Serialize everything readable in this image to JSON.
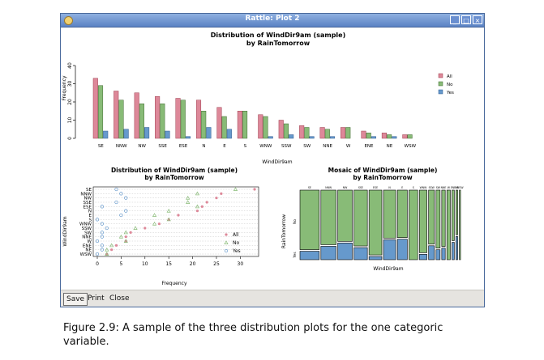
{
  "window": {
    "title": "Rattle: Plot 2",
    "controls": [
      "_",
      "□",
      "×"
    ]
  },
  "buttons": {
    "save": "Save",
    "print": "Print",
    "close": "Close"
  },
  "caption": "Figure 2.9:  A sample of the three distribution plots for the one categoric variable.",
  "colors": {
    "all": "#dd8899",
    "no": "#88bb77",
    "yes": "#6699cc"
  },
  "chart_data": [
    {
      "type": "bar",
      "title": "Distribution of WindDir9am (sample)",
      "subtitle": "by RainTomorrow",
      "xlabel": "WindDir9am",
      "ylabel": "Frequency",
      "ylim": [
        0,
        40
      ],
      "yticks": [
        0,
        10,
        20,
        30,
        40
      ],
      "categories": [
        "SE",
        "NNW",
        "NW",
        "SSE",
        "ESE",
        "N",
        "E",
        "S",
        "WNW",
        "SSW",
        "SW",
        "NNE",
        "W",
        "ENE",
        "NE",
        "WSW"
      ],
      "series": [
        {
          "name": "All",
          "values": [
            33,
            26,
            25,
            23,
            22,
            21,
            17,
            15,
            13,
            10,
            7,
            6,
            6,
            4,
            3,
            2
          ]
        },
        {
          "name": "No",
          "values": [
            29,
            21,
            19,
            19,
            21,
            15,
            12,
            15,
            12,
            8,
            6,
            5,
            6,
            3,
            2,
            2
          ]
        },
        {
          "name": "Yes",
          "values": [
            4,
            5,
            6,
            4,
            1,
            6,
            5,
            0,
            1,
            2,
            1,
            1,
            0,
            1,
            1,
            0
          ]
        }
      ],
      "legend": "right"
    },
    {
      "type": "scatter",
      "title": "Distribution of WindDir9am (sample)",
      "subtitle": "by RainTomorrow",
      "xlabel": "Frequency",
      "ylabel": "WindDir9am",
      "xlim": [
        0,
        33
      ],
      "xticks": [
        0,
        5,
        10,
        15,
        20,
        25,
        30
      ],
      "categories": [
        "SE",
        "NNW",
        "NW",
        "SSE",
        "ESE",
        "N",
        "E",
        "S",
        "WNW",
        "SSW",
        "SW",
        "NNE",
        "W",
        "ENE",
        "NE",
        "WSW"
      ],
      "series": [
        {
          "name": "All",
          "values": [
            33,
            26,
            25,
            23,
            22,
            21,
            17,
            15,
            13,
            10,
            7,
            6,
            6,
            4,
            3,
            2
          ]
        },
        {
          "name": "No",
          "values": [
            29,
            21,
            19,
            19,
            21,
            15,
            12,
            15,
            12,
            8,
            6,
            5,
            6,
            3,
            2,
            2
          ]
        },
        {
          "name": "Yes",
          "values": [
            4,
            5,
            6,
            4,
            1,
            6,
            5,
            0,
            1,
            2,
            1,
            1,
            0,
            1,
            1,
            0
          ]
        }
      ],
      "legend": "bottom-right"
    },
    {
      "type": "mosaic",
      "title": "Mosaic of WindDir9am (sample)",
      "subtitle": "by RainTomorrow",
      "xlabel": "WindDir9am",
      "ylabel": "RainTomorrow",
      "ylevels": [
        "No",
        "Yes"
      ],
      "categories": [
        "SE",
        "NNW",
        "NW",
        "SSE",
        "ESE",
        "N",
        "E",
        "S",
        "WNW",
        "SSW",
        "SW",
        "NNE",
        "W",
        "ENE",
        "NE",
        "WSW"
      ],
      "no": [
        29,
        21,
        19,
        19,
        21,
        15,
        12,
        15,
        12,
        8,
        6,
        5,
        6,
        3,
        2,
        2
      ],
      "yes": [
        4,
        5,
        6,
        4,
        1,
        6,
        5,
        0,
        1,
        2,
        1,
        1,
        0,
        1,
        1,
        0
      ]
    }
  ]
}
